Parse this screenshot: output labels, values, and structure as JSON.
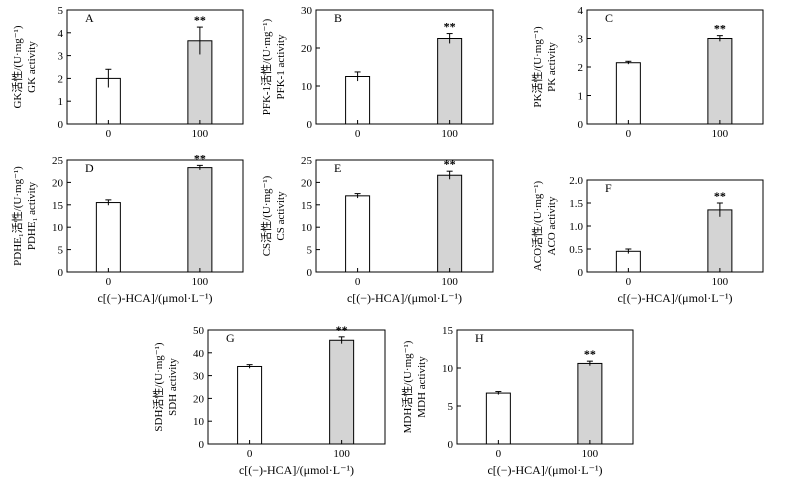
{
  "chart_data": [
    {
      "type": "bar",
      "panel": "A",
      "ylabel_cn": "GK活性/(U·mg⁻¹)",
      "ylabel_en": "GK activity",
      "yticks": [
        0,
        1,
        2,
        3,
        4,
        5
      ],
      "ylim": [
        0,
        5
      ],
      "categories": [
        "0",
        "100"
      ],
      "values": [
        2.0,
        3.65
      ],
      "errors": [
        0.4,
        0.6
      ],
      "significance": [
        "",
        "**"
      ]
    },
    {
      "type": "bar",
      "panel": "B",
      "ylabel_cn": "PFK-1活性/(U·mg⁻¹)",
      "ylabel_en": "PFK-1 activity",
      "yticks": [
        0,
        10,
        20,
        30
      ],
      "ylim": [
        0,
        30
      ],
      "categories": [
        "0",
        "100"
      ],
      "values": [
        12.5,
        22.5
      ],
      "errors": [
        1.2,
        1.3
      ],
      "significance": [
        "",
        "**"
      ]
    },
    {
      "type": "bar",
      "panel": "C",
      "ylabel_cn": "PK活性/(U·mg⁻¹)",
      "ylabel_en": "PK activity",
      "yticks": [
        0,
        1,
        2,
        3,
        4
      ],
      "ylim": [
        0,
        4
      ],
      "categories": [
        "0",
        "100"
      ],
      "values": [
        2.15,
        3.0
      ],
      "errors": [
        0.05,
        0.1
      ],
      "significance": [
        "",
        "**"
      ]
    },
    {
      "type": "bar",
      "panel": "D",
      "ylabel_cn": "PDHE₁活性/(U·mg⁻¹)",
      "ylabel_en": "PDHE₁ activity",
      "yticks": [
        0,
        5,
        10,
        15,
        20,
        25
      ],
      "ylim": [
        0,
        25
      ],
      "categories": [
        "0",
        "100"
      ],
      "values": [
        15.5,
        23.3
      ],
      "errors": [
        0.6,
        0.5
      ],
      "significance": [
        "",
        "**"
      ]
    },
    {
      "type": "bar",
      "panel": "E",
      "ylabel_cn": "CS活性/(U·mg⁻¹)",
      "ylabel_en": "CS activity",
      "yticks": [
        0,
        5,
        10,
        15,
        20,
        25
      ],
      "ylim": [
        0,
        25
      ],
      "categories": [
        "0",
        "100"
      ],
      "values": [
        17.0,
        21.6
      ],
      "errors": [
        0.5,
        0.9
      ],
      "significance": [
        "",
        "**"
      ]
    },
    {
      "type": "bar",
      "panel": "F",
      "ylabel_cn": "ACO活性/(U·mg⁻¹)",
      "ylabel_en": "ACO activity",
      "yticks": [
        0,
        0.5,
        1.0,
        1.5,
        2.0
      ],
      "yticklabels": [
        "0",
        "0.5",
        "1.0",
        "1.5",
        "2.0"
      ],
      "ylim": [
        0,
        2
      ],
      "categories": [
        "0",
        "100"
      ],
      "values": [
        0.45,
        1.35
      ],
      "errors": [
        0.05,
        0.15
      ],
      "significance": [
        "",
        "**"
      ]
    },
    {
      "type": "bar",
      "panel": "G",
      "ylabel_cn": "SDH活性/(U·mg⁻¹)",
      "ylabel_en": "SDH activity",
      "yticks": [
        0,
        10,
        20,
        30,
        40,
        50
      ],
      "ylim": [
        0,
        50
      ],
      "categories": [
        "0",
        "100"
      ],
      "values": [
        34,
        45.5
      ],
      "errors": [
        0.8,
        1.5
      ],
      "significance": [
        "",
        "**"
      ]
    },
    {
      "type": "bar",
      "panel": "H",
      "ylabel_cn": "MDH活性/(U·mg⁻¹)",
      "ylabel_en": "MDH activity",
      "yticks": [
        0,
        5,
        10,
        15
      ],
      "ylim": [
        0,
        15
      ],
      "categories": [
        "0",
        "100"
      ],
      "values": [
        6.7,
        10.6
      ],
      "errors": [
        0.2,
        0.3
      ],
      "significance": [
        "",
        "**"
      ]
    }
  ],
  "xlabel": "c[(−)-HCA]/(μmol·L⁻¹)",
  "colors": {
    "control_fill": "#ffffff",
    "treated_fill": "#d4d4d4",
    "stroke": "#000000"
  }
}
